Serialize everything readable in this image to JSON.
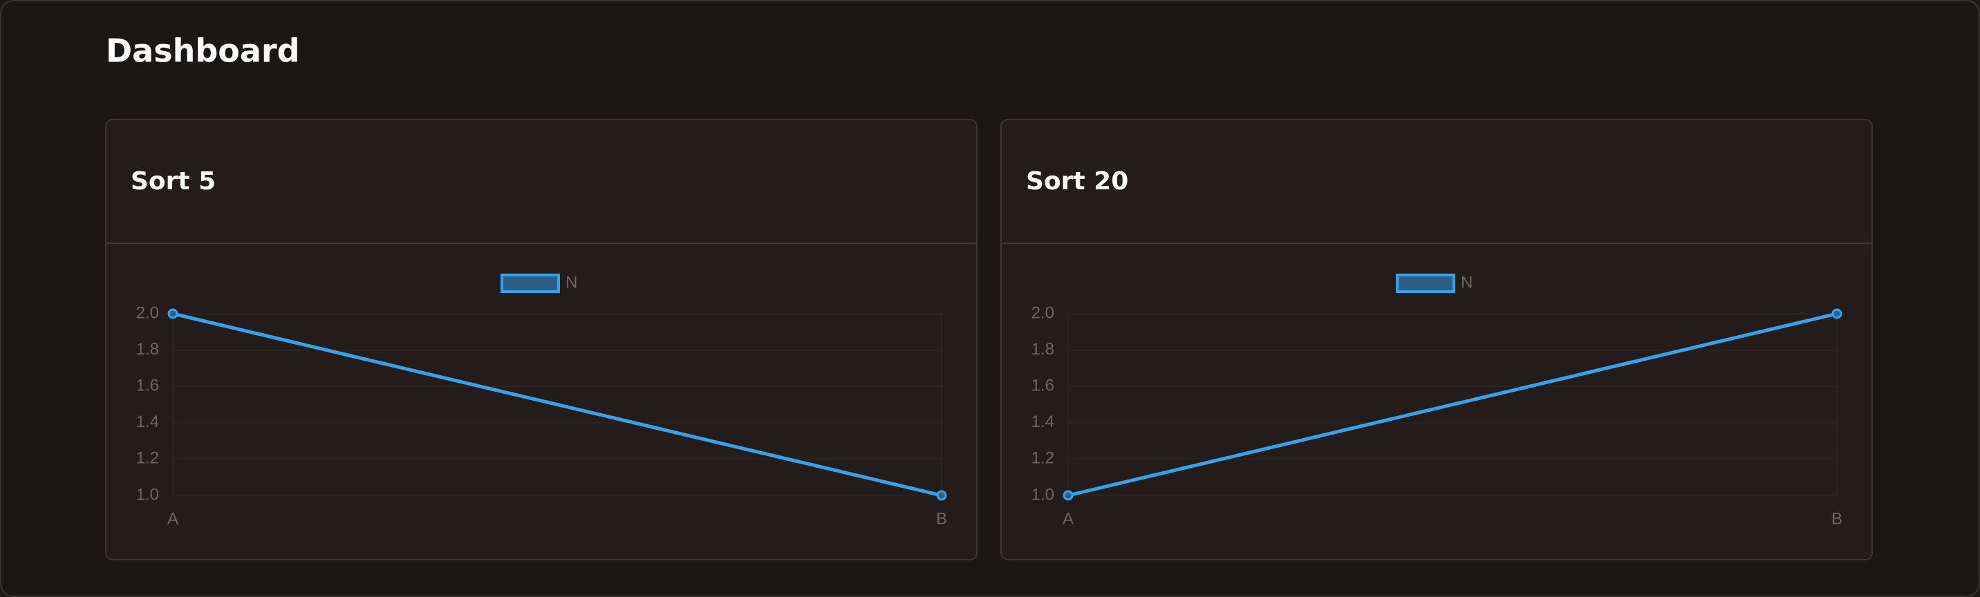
{
  "header": {
    "title": "Dashboard"
  },
  "chart_data": [
    {
      "type": "line",
      "title": "Sort 5",
      "categories": [
        "A",
        "B"
      ],
      "series": [
        {
          "name": "N",
          "color": "#36a2eb",
          "values": [
            2,
            1
          ]
        }
      ],
      "ylim": [
        1,
        2
      ],
      "yticks": [
        {
          "value": 1,
          "label": "1.0"
        },
        1.2,
        1.4,
        1.6,
        1.8,
        {
          "value": 2,
          "label": "2.0"
        }
      ],
      "grid": true
    },
    {
      "type": "line",
      "title": "Sort 20",
      "categories": [
        "A",
        "B"
      ],
      "series": [
        {
          "name": "N",
          "color": "#36a2eb",
          "values": [
            1,
            2
          ]
        }
      ],
      "ylim": [
        1,
        2
      ],
      "yticks": [
        {
          "value": 1,
          "label": "1.0"
        },
        1.2,
        1.4,
        1.6,
        1.8,
        {
          "value": 2,
          "label": "2.0"
        }
      ],
      "grid": true
    }
  ]
}
